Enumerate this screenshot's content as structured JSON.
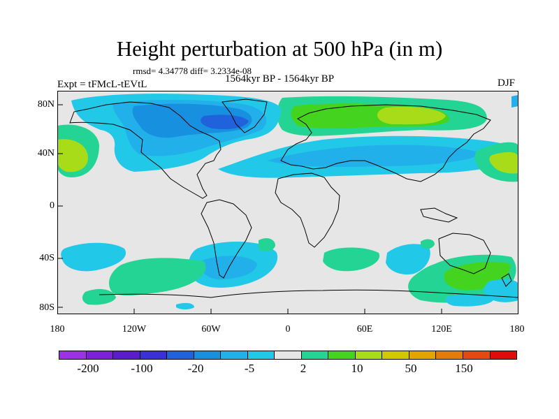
{
  "title": "Height perturbation at 500 hPa (in m)",
  "stats_line": "rmsd= 4.34778 diff= 3.2334e-08",
  "period_label": "1564kyr BP - 1564kyr BP",
  "experiment_label": "Expt = tFMcL-tEVtL",
  "season_label": "DJF",
  "y_axis": {
    "ticks": [
      "80N",
      "40N",
      "0",
      "40S",
      "80S"
    ]
  },
  "x_axis": {
    "ticks": [
      "180",
      "120W",
      "60W",
      "0",
      "60E",
      "120E",
      "180"
    ]
  },
  "colorbar": {
    "colors": [
      "#9b32e6",
      "#7b22d8",
      "#5b1ccc",
      "#3a30d6",
      "#1f62dc",
      "#1890e0",
      "#22b0ea",
      "#22c8e8",
      "#e6e6e6",
      "#24d494",
      "#44d420",
      "#a8dc18",
      "#d0c800",
      "#e4a400",
      "#e47c0c",
      "#e44a10",
      "#e00c0c"
    ],
    "labels": [
      "-200",
      "-100",
      "-20",
      "-5",
      "2",
      "10",
      "50",
      "150"
    ]
  },
  "chart_data": {
    "type": "heatmap",
    "title": "Height perturbation at 500 hPa (in m)",
    "variable": "500 hPa geopotential height perturbation",
    "units": "m",
    "season": "DJF",
    "lon_range": [
      -180,
      180
    ],
    "lat_range": [
      -90,
      90
    ],
    "anomaly_regions": [
      {
        "region": "Arctic Canada / Greenland",
        "lon": -60,
        "lat": 70,
        "level": "-20 to -5"
      },
      {
        "region": "North Atlantic / Europe",
        "lon": 20,
        "lat": 65,
        "level": "2 to 10"
      },
      {
        "region": "Eurasia belt",
        "lon": 40,
        "lat": 45,
        "level": "-5 to -2"
      },
      {
        "region": "North Pacific",
        "lon": 160,
        "lat": 40,
        "level": "2 to 10"
      },
      {
        "region": "South Atlantic",
        "lon": -40,
        "lat": -50,
        "level": "-5 to -2"
      },
      {
        "region": "Southern Indian Ocean",
        "lon": 40,
        "lat": -50,
        "level": "2 to 10"
      },
      {
        "region": "South of Australia",
        "lon": 130,
        "lat": -60,
        "level": "2 to 10"
      }
    ]
  }
}
